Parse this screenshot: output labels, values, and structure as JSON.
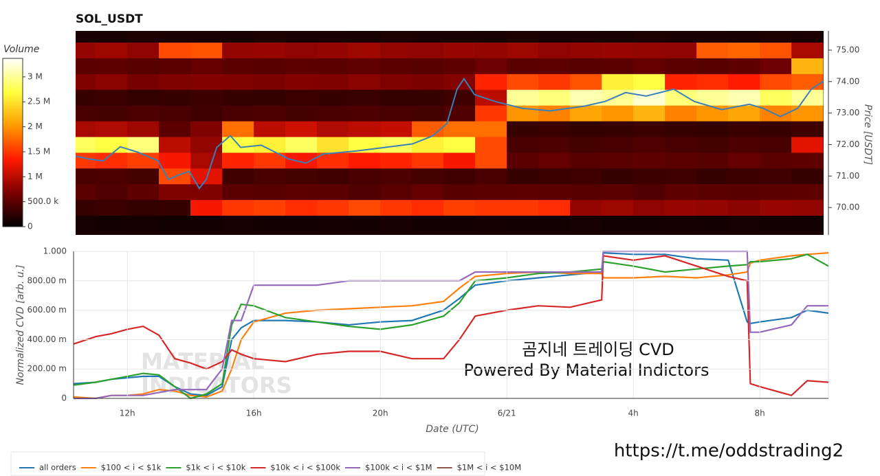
{
  "chart_data": [
    {
      "type": "heatmap",
      "title": "SOL_USDT",
      "colorbar_title": "Volume",
      "colorscale": [
        "#000000",
        "#7a0000",
        "#ff1a00",
        "#ff9a00",
        "#ffff40",
        "#ffffff"
      ],
      "zlim": [
        0,
        3370000
      ],
      "zticks": [
        0,
        {
          "value": 500000,
          "label": "500.0 k"
        },
        {
          "value": 1000000,
          "label": "1 M"
        },
        {
          "value": 1500000,
          "label": "1.5 M"
        },
        {
          "value": 2000000,
          "label": "2 M"
        },
        {
          "value": 2500000,
          "label": "2.5 M"
        },
        {
          "value": 3000000,
          "label": "3 M"
        }
      ],
      "xlim": [
        10.37,
        34.02
      ],
      "ylim": [
        69.13,
        75.61
      ],
      "ylabel": "Price [USDT]",
      "yticks": [
        {
          "value": 70,
          "label": "70.00"
        },
        {
          "value": 71,
          "label": "71.00"
        },
        {
          "value": 72,
          "label": "72.00"
        },
        {
          "value": 73,
          "label": "73.00"
        },
        {
          "value": 74,
          "label": "74.00"
        },
        {
          "value": 75,
          "label": "75.00"
        }
      ],
      "x_edges": [
        10.37,
        11,
        12,
        13,
        14,
        15,
        16,
        17,
        18,
        19,
        20,
        21,
        22,
        23,
        24,
        25,
        26,
        27,
        28,
        29,
        30,
        31,
        32,
        33,
        34
      ],
      "y_edges": [
        69.25,
        69.75,
        70.25,
        70.75,
        71.25,
        71.75,
        72.25,
        72.75,
        73.25,
        73.75,
        74.25,
        74.75,
        75.25,
        75.75
      ],
      "z": [
        [
          120000,
          100000,
          110000,
          90000,
          100000,
          120000,
          100000,
          90000,
          110000,
          100000,
          120000,
          100000,
          90000,
          110000,
          100000,
          100000,
          120000,
          90000,
          100000,
          110000,
          100000,
          120000,
          100000,
          90000
        ],
        [
          300000,
          320000,
          280000,
          300000,
          1300000,
          1500000,
          1550000,
          1450000,
          1500000,
          1600000,
          1500000,
          1450000,
          1550000,
          1500000,
          1500000,
          1450000,
          800000,
          850000,
          780000,
          820000,
          800000,
          760000,
          820000,
          800000
        ],
        [
          500000,
          450000,
          520000,
          700000,
          700000,
          500000,
          480000,
          520000,
          500000,
          450000,
          500000,
          550000,
          480000,
          500000,
          520000,
          500000,
          480000,
          500000,
          450000,
          520000,
          500000,
          480000,
          500000,
          520000
        ],
        [
          400000,
          420000,
          380000,
          1600000,
          1200000,
          350000,
          400000,
          380000,
          350000,
          400000,
          420000,
          380000,
          350000,
          400000,
          300000,
          320000,
          350000,
          300000,
          330000,
          350000,
          300000,
          320000,
          340000,
          300000
        ],
        [
          1500000,
          1450000,
          1550000,
          1300000,
          900000,
          1400000,
          1500000,
          1300000,
          1450000,
          1350000,
          1400000,
          1500000,
          1300000,
          1600000,
          500000,
          550000,
          480000,
          500000,
          520000,
          500000,
          480000,
          550000,
          500000,
          520000
        ],
        [
          2800000,
          2700000,
          2900000,
          1000000,
          800000,
          2700000,
          2600000,
          2800000,
          2500000,
          2700000,
          2800000,
          2600000,
          2700000,
          1600000,
          400000,
          420000,
          380000,
          400000,
          450000,
          400000,
          380000,
          420000,
          400000,
          1200000
        ],
        [
          900000,
          950000,
          850000,
          500000,
          700000,
          1800000,
          1000000,
          1100000,
          950000,
          1000000,
          1050000,
          1700000,
          1800000,
          1800000,
          300000,
          320000,
          280000,
          300000,
          330000,
          300000,
          280000,
          320000,
          300000,
          350000
        ],
        [
          400000,
          380000,
          420000,
          400000,
          350000,
          400000,
          420000,
          380000,
          400000,
          420000,
          400000,
          380000,
          450000,
          1500000,
          2000000,
          1900000,
          2100000,
          2000000,
          2200000,
          1900000,
          2000000,
          2100000,
          1900000,
          2000000
        ],
        [
          300000,
          320000,
          280000,
          300000,
          330000,
          300000,
          280000,
          320000,
          300000,
          310000,
          290000,
          300000,
          350000,
          1000000,
          3000000,
          2900000,
          3100000,
          3000000,
          3200000,
          2900000,
          3000000,
          3100000,
          2800000,
          3000000
        ],
        [
          700000,
          750000,
          650000,
          700000,
          720000,
          700000,
          680000,
          720000,
          700000,
          750000,
          700000,
          680000,
          720000,
          1400000,
          1600000,
          1500000,
          1650000,
          2600000,
          2700000,
          1400000,
          1450000,
          1350000,
          1600000,
          1700000
        ],
        [
          500000,
          520000,
          480000,
          500000,
          550000,
          500000,
          480000,
          520000,
          500000,
          530000,
          500000,
          480000,
          520000,
          600000,
          500000,
          520000,
          480000,
          500000,
          550000,
          500000,
          480000,
          520000,
          600000,
          2200000
        ],
        [
          800000,
          850000,
          780000,
          1600000,
          1650000,
          800000,
          820000,
          780000,
          800000,
          850000,
          800000,
          780000,
          820000,
          800000,
          850000,
          780000,
          800000,
          820000,
          800000,
          780000,
          1700000,
          1750000,
          1650000,
          900000
        ],
        [
          150000,
          140000,
          160000,
          150000,
          150000,
          140000,
          160000,
          150000,
          150000,
          140000,
          160000,
          150000,
          150000,
          140000,
          160000,
          150000,
          150000,
          140000,
          160000,
          150000,
          150000,
          140000,
          160000,
          150000
        ]
      ],
      "line": {
        "color": "#3a80b8",
        "x": [
          10.37,
          10.8,
          11.24,
          11.78,
          12.33,
          12.98,
          13.3,
          13.63,
          13.96,
          14.28,
          14.5,
          14.83,
          15.26,
          15.59,
          16.24,
          17.11,
          17.65,
          18.2,
          19.28,
          20.15,
          21.02,
          21.67,
          22.11,
          22.43,
          22.65,
          22.98,
          23.63,
          24.5,
          25.37,
          26.46,
          27.11,
          27.76,
          28.41,
          29.28,
          29.93,
          30.8,
          31.67,
          32.11,
          32.65,
          33.2,
          33.63,
          34.02
        ],
        "values": [
          71.63,
          71.54,
          71.48,
          71.93,
          71.76,
          71.48,
          70.89,
          71.04,
          71.15,
          70.61,
          70.89,
          71.91,
          72.28,
          71.91,
          71.98,
          71.54,
          71.41,
          71.7,
          71.8,
          71.91,
          72.02,
          72.28,
          72.67,
          73.76,
          74.09,
          73.59,
          73.37,
          73.15,
          73.07,
          73.22,
          73.37,
          73.65,
          73.54,
          73.76,
          73.37,
          73.11,
          73.28,
          73.15,
          72.89,
          73.15,
          73.76,
          74.02
        ]
      }
    },
    {
      "type": "line",
      "xlabel": "Date (UTC)",
      "ylabel": "Normalized CVD [arb. u.]",
      "xlim": [
        10.3,
        34.17
      ],
      "ylim": [
        0,
        1
      ],
      "xticks": [
        {
          "value": 12,
          "label": "12h"
        },
        {
          "value": 16,
          "label": "16h"
        },
        {
          "value": 20,
          "label": "20h"
        },
        {
          "value": 24,
          "label": "6/21"
        },
        {
          "value": 28,
          "label": "4h"
        },
        {
          "value": 32,
          "label": "8h"
        }
      ],
      "yticks": [
        0,
        {
          "value": 0.2,
          "label": "200.00 m"
        },
        {
          "value": 0.4,
          "label": "400.00 m"
        },
        {
          "value": 0.6,
          "label": "600.00 m"
        },
        {
          "value": 0.8,
          "label": "800.00 m"
        },
        {
          "value": 1,
          "label": "1.000"
        }
      ],
      "grid": true,
      "legend": "bottom-left",
      "x": [
        10.3,
        11,
        11.5,
        12,
        12.5,
        13,
        13.5,
        14,
        14.5,
        15,
        15.3,
        15.6,
        16,
        17,
        18,
        19,
        20,
        21,
        22,
        22.5,
        23,
        24,
        25,
        26,
        27,
        27.05,
        28,
        29,
        30,
        31,
        31.6,
        31.7,
        32,
        33,
        33.5,
        34.17
      ],
      "series": [
        {
          "name": "all orders",
          "color": "#1f77b4",
          "values": [
            0.1,
            0.11,
            0.13,
            0.14,
            0.15,
            0.15,
            0.08,
            0.03,
            0.02,
            0.08,
            0.4,
            0.48,
            0.53,
            0.53,
            0.52,
            0.5,
            0.52,
            0.53,
            0.6,
            0.68,
            0.77,
            0.8,
            0.82,
            0.84,
            0.86,
            0.99,
            0.98,
            0.98,
            0.95,
            0.94,
            0.52,
            0.51,
            0.52,
            0.55,
            0.6,
            0.58
          ]
        },
        {
          "name": "$100 < i < $1k",
          "color": "#ff7f0e",
          "values": [
            0.01,
            0,
            0.02,
            0.02,
            0.03,
            0.06,
            0.05,
            0.02,
            0.01,
            0.05,
            0.2,
            0.4,
            0.52,
            0.58,
            0.6,
            0.61,
            0.62,
            0.63,
            0.66,
            0.75,
            0.83,
            0.85,
            0.86,
            0.85,
            0.85,
            0.82,
            0.82,
            0.83,
            0.82,
            0.84,
            0.86,
            0.92,
            0.94,
            0.97,
            0.98,
            0.99
          ]
        },
        {
          "name": "$1k < i < $10k",
          "color": "#2ca02c",
          "values": [
            0.09,
            0.11,
            0.13,
            0.15,
            0.17,
            0.16,
            0.08,
            0,
            0.03,
            0.1,
            0.5,
            0.64,
            0.63,
            0.55,
            0.52,
            0.49,
            0.47,
            0.5,
            0.56,
            0.65,
            0.8,
            0.82,
            0.85,
            0.86,
            0.88,
            0.93,
            0.9,
            0.86,
            0.88,
            0.9,
            0.91,
            0.93,
            0.93,
            0.95,
            0.98,
            0.9
          ]
        },
        {
          "name": "$10k < i < $100k",
          "color": "#d62728",
          "values": [
            0.37,
            0.42,
            0.44,
            0.47,
            0.49,
            0.43,
            0.27,
            0.24,
            0.2,
            0.25,
            0.33,
            0.3,
            0.27,
            0.25,
            0.3,
            0.32,
            0.32,
            0.27,
            0.27,
            0.4,
            0.56,
            0.6,
            0.63,
            0.62,
            0.67,
            0.97,
            0.94,
            0.97,
            0.9,
            0.83,
            0.8,
            0.1,
            0.08,
            0.02,
            0.12,
            0.11
          ]
        },
        {
          "name": "$100k < i < $1M",
          "color": "#9467bd",
          "values": [
            0,
            0,
            0.02,
            0.02,
            0.02,
            0.04,
            0.06,
            0.06,
            0.06,
            0.2,
            0.53,
            0.53,
            0.77,
            0.77,
            0.77,
            0.8,
            0.8,
            0.8,
            0.8,
            0.8,
            0.86,
            0.86,
            0.86,
            0.86,
            0.86,
            1,
            1,
            1,
            1,
            1,
            1,
            0.45,
            0.45,
            0.5,
            0.63,
            0.63
          ]
        },
        {
          "name": "$1M < i < $10M",
          "color": "#8c564b",
          "values": [
            null,
            null,
            null,
            null,
            null,
            null,
            null,
            null,
            null,
            null,
            null,
            null,
            null,
            null,
            null,
            null,
            null,
            null,
            null,
            null,
            null,
            null,
            null,
            null,
            null,
            null,
            null,
            null,
            null,
            null,
            null,
            null,
            null,
            null,
            null,
            null
          ]
        }
      ],
      "watermark": [
        "MATERIAL",
        "INDICATORS"
      ],
      "annotations": [
        "곰지네 트레이딩 CVD",
        "Powered By Material Indictors",
        "https://t.me/oddstrading2"
      ]
    }
  ]
}
